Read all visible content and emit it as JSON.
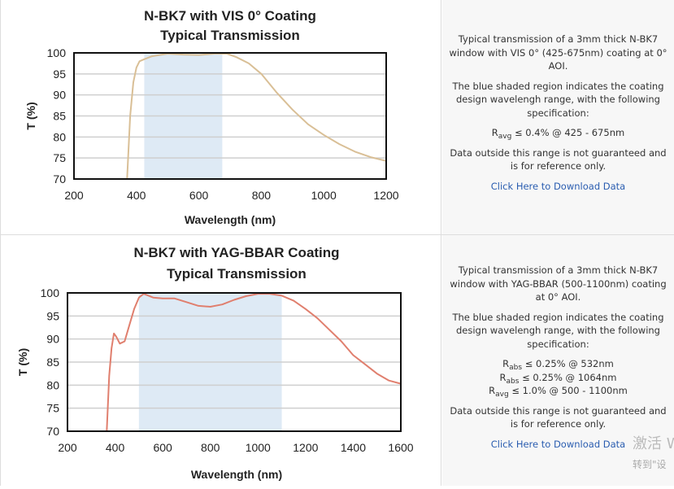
{
  "chart_data": [
    {
      "type": "line",
      "title": "N-BK7 with VIS 0° Coating",
      "subtitle": "Typical Transmission",
      "xlabel": "Wavelength (nm)",
      "ylabel": "T (%)",
      "xlim": [
        200,
        1200
      ],
      "ylim": [
        70,
        100
      ],
      "xticks": [
        200,
        400,
        600,
        800,
        1000,
        1200
      ],
      "yticks": [
        70,
        75,
        80,
        85,
        90,
        95,
        100
      ],
      "grid": true,
      "shaded_region": [
        425,
        675
      ],
      "shade_color": "#deeaf5",
      "line_color": "#d9bf96",
      "x": [
        370,
        380,
        390,
        400,
        410,
        425,
        450,
        500,
        550,
        600,
        650,
        690,
        720,
        760,
        800,
        850,
        900,
        950,
        1000,
        1050,
        1100,
        1150,
        1200
      ],
      "y": [
        70,
        85,
        93,
        96.5,
        98,
        98.5,
        99.2,
        99.8,
        99.6,
        99.5,
        99.8,
        99.8,
        99,
        97.5,
        95,
        90.5,
        86.5,
        83,
        80.5,
        78.3,
        76.5,
        75.2,
        74.3
      ]
    },
    {
      "type": "line",
      "title": "N-BK7 with YAG-BBAR Coating",
      "subtitle": "Typical Transmission",
      "xlabel": "Wavelength (nm)",
      "ylabel": "T (%)",
      "xlim": [
        200,
        1600
      ],
      "ylim": [
        70,
        100
      ],
      "xticks": [
        200,
        400,
        600,
        800,
        1000,
        1200,
        1400,
        1600
      ],
      "yticks": [
        70,
        75,
        80,
        85,
        90,
        95,
        100
      ],
      "grid": true,
      "shaded_region": [
        500,
        1100
      ],
      "shade_color": "#deeaf5",
      "line_color": "#e07f6e",
      "x": [
        365,
        375,
        385,
        395,
        405,
        420,
        440,
        460,
        480,
        500,
        520,
        560,
        600,
        650,
        700,
        750,
        800,
        850,
        900,
        950,
        1000,
        1050,
        1100,
        1150,
        1200,
        1250,
        1300,
        1350,
        1400,
        1450,
        1500,
        1550,
        1600
      ],
      "y": [
        70,
        82,
        88,
        91.2,
        90.5,
        89,
        89.5,
        93,
        96.5,
        99,
        99.8,
        99,
        98.8,
        98.8,
        98,
        97.2,
        97,
        97.5,
        98.5,
        99.3,
        99.8,
        99.8,
        99.4,
        98.3,
        96.5,
        94.5,
        92,
        89.5,
        86.5,
        84.5,
        82.5,
        81,
        80.3
      ]
    }
  ],
  "panels": [
    {
      "intro": "Typical transmission of a 3mm thick N-BK7 window with VIS 0° (425-675nm) coating at 0° AOI.",
      "shaded_note": "The blue shaded region indicates the coating design wavelengh range, with the following specification:",
      "specs": [
        {
          "symbol": "R",
          "sub": "avg",
          "text": " ≤ 0.4% @ 425 - 675nm"
        }
      ],
      "disclaimer": "Data outside this range is not guaranteed and is for reference only.",
      "download_link": "Click Here to Download Data"
    },
    {
      "intro": "Typical transmission of a 3mm thick N-BK7 window with YAG-BBAR (500-1100nm) coating at 0° AOI.",
      "shaded_note": "The blue shaded region indicates the coating design wavelengh range, with the following specification:",
      "specs": [
        {
          "symbol": "R",
          "sub": "abs",
          "text": " ≤ 0.25% @ 532nm"
        },
        {
          "symbol": "R",
          "sub": "abs",
          "text": " ≤ 0.25% @ 1064nm"
        },
        {
          "symbol": "R",
          "sub": "avg",
          "text": " ≤ 1.0% @ 500 - 1100nm"
        }
      ],
      "disclaimer": "Data outside this range is not guaranteed and is for reference only.",
      "download_link": "Click Here to Download Data"
    }
  ],
  "watermark": {
    "line1": "激活 W",
    "line2": "转到\"设"
  }
}
